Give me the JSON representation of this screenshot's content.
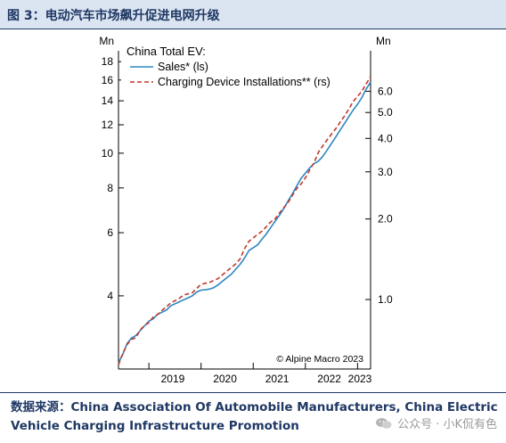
{
  "figure_title": "图 3：电动汽车市场飙升促进电网升级",
  "source_text": "数据来源：China Association Of Automobile Manufacturers, China Electric Vehicle Charging Infrastructure Promotion",
  "watermark": "公众号 · 小K侃有色",
  "colors": {
    "sales": "#2e86c1",
    "installations": "#c0392b",
    "axis": "#000000",
    "title_text": "#1f3864",
    "header_bg": "#dbe4f1"
  },
  "chart_data": {
    "type": "line",
    "legend_title": "China Total EV:",
    "legend_position": "top-left",
    "copyright": "© Alpine Macro 2023",
    "left_unit": "Mn",
    "right_unit": "Mn",
    "x_ticks": [
      "2019",
      "2020",
      "2021",
      "2022",
      "2023"
    ],
    "x_range": [
      "2018-06",
      "2023-04"
    ],
    "y_left": {
      "scale": "log",
      "range": [
        2.5,
        19.3
      ],
      "ticks": [
        4,
        6,
        8,
        10,
        12,
        14,
        16,
        18
      ]
    },
    "y_right": {
      "scale": "log",
      "range": [
        0.55,
        8.5
      ],
      "ticks": [
        1.0,
        2.0,
        3.0,
        4.0,
        5.0,
        6.0
      ]
    },
    "grid": false,
    "series": [
      {
        "name": "Sales* (ls)",
        "axis": "left",
        "style": "solid",
        "x": [
          "2018-06",
          "2018-07",
          "2018-08",
          "2018-09",
          "2018-10",
          "2018-11",
          "2018-12",
          "2019-01",
          "2019-02",
          "2019-03",
          "2019-04",
          "2019-05",
          "2019-06",
          "2019-07",
          "2019-08",
          "2019-09",
          "2019-10",
          "2019-11",
          "2019-12",
          "2020-01",
          "2020-02",
          "2020-03",
          "2020-04",
          "2020-05",
          "2020-06",
          "2020-07",
          "2020-08",
          "2020-09",
          "2020-10",
          "2020-11",
          "2020-12",
          "2021-01",
          "2021-02",
          "2021-03",
          "2021-04",
          "2021-05",
          "2021-06",
          "2021-07",
          "2021-08",
          "2021-09",
          "2021-10",
          "2021-11",
          "2021-12",
          "2022-01",
          "2022-02",
          "2022-03",
          "2022-04",
          "2022-05",
          "2022-06",
          "2022-07",
          "2022-08",
          "2022-09",
          "2022-10",
          "2022-11",
          "2022-12",
          "2023-01",
          "2023-02",
          "2023-03",
          "2023-04"
        ],
        "values": [
          2.6,
          2.75,
          2.95,
          3.05,
          3.1,
          3.2,
          3.3,
          3.4,
          3.45,
          3.55,
          3.6,
          3.65,
          3.75,
          3.8,
          3.85,
          3.9,
          3.95,
          4.0,
          4.1,
          4.15,
          4.16,
          4.18,
          4.22,
          4.3,
          4.4,
          4.5,
          4.6,
          4.75,
          4.9,
          5.1,
          5.35,
          5.45,
          5.55,
          5.75,
          5.95,
          6.2,
          6.45,
          6.7,
          7.0,
          7.35,
          7.7,
          8.1,
          8.5,
          8.8,
          9.1,
          9.35,
          9.5,
          9.8,
          10.2,
          10.65,
          11.1,
          11.6,
          12.1,
          12.65,
          13.2,
          13.7,
          14.3,
          15.1,
          15.8
        ]
      },
      {
        "name": "Charging Device Installations** (rs)",
        "axis": "right",
        "style": "dashed",
        "x": [
          "2018-06",
          "2018-07",
          "2018-08",
          "2018-09",
          "2018-10",
          "2018-11",
          "2018-12",
          "2019-01",
          "2019-02",
          "2019-03",
          "2019-04",
          "2019-05",
          "2019-06",
          "2019-07",
          "2019-08",
          "2019-09",
          "2019-10",
          "2019-11",
          "2019-12",
          "2020-01",
          "2020-02",
          "2020-03",
          "2020-04",
          "2020-05",
          "2020-06",
          "2020-07",
          "2020-08",
          "2020-09",
          "2020-10",
          "2020-11",
          "2020-12",
          "2021-01",
          "2021-02",
          "2021-03",
          "2021-04",
          "2021-05",
          "2021-06",
          "2021-07",
          "2021-08",
          "2021-09",
          "2021-10",
          "2021-11",
          "2021-12",
          "2022-01",
          "2022-02",
          "2022-03",
          "2022-04",
          "2022-05",
          "2022-06",
          "2022-07",
          "2022-08",
          "2022-09",
          "2022-10",
          "2022-11",
          "2022-12",
          "2023-01",
          "2023-02",
          "2023-03",
          "2023-04"
        ],
        "values": [
          0.57,
          0.63,
          0.68,
          0.71,
          0.72,
          0.77,
          0.8,
          0.82,
          0.86,
          0.88,
          0.91,
          0.94,
          0.97,
          0.99,
          1.01,
          1.04,
          1.05,
          1.06,
          1.1,
          1.14,
          1.15,
          1.16,
          1.18,
          1.2,
          1.24,
          1.28,
          1.32,
          1.36,
          1.42,
          1.55,
          1.65,
          1.7,
          1.75,
          1.8,
          1.87,
          1.95,
          2.0,
          2.1,
          2.2,
          2.3,
          2.45,
          2.6,
          2.7,
          2.85,
          3.05,
          3.25,
          3.55,
          3.75,
          3.95,
          4.15,
          4.35,
          4.6,
          4.85,
          5.15,
          5.5,
          5.75,
          6.0,
          6.4,
          6.8
        ]
      }
    ]
  }
}
